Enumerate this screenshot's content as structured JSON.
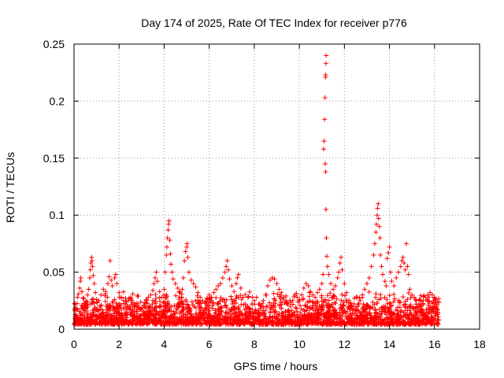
{
  "chart_data": {
    "type": "scatter",
    "title": "Day 174 of 2025, Rate Of TEC Index for receiver p776",
    "xlabel": "GPS time / hours",
    "ylabel": "ROTI / TECUs",
    "xlim": [
      0,
      18
    ],
    "ylim": [
      0,
      0.25
    ],
    "xticks": [
      0,
      2,
      4,
      6,
      8,
      10,
      12,
      14,
      16,
      18
    ],
    "xtick_labels": [
      "0",
      "2",
      "4",
      "6",
      "8",
      "10",
      "12",
      "14",
      "16",
      "18"
    ],
    "yticks": [
      0,
      0.05,
      0.1,
      0.15,
      0.2,
      0.25
    ],
    "ytick_labels": [
      "0",
      "0.05",
      "0.1",
      "0.15",
      "0.2",
      "0.25"
    ],
    "grid": true,
    "marker": "+",
    "color": "#ff0000",
    "series": [
      {
        "name": "ROTI",
        "points": [
          [
            0.05,
            0.022
          ],
          [
            0.1,
            0.018
          ],
          [
            0.15,
            0.028
          ],
          [
            0.2,
            0.031
          ],
          [
            0.25,
            0.036
          ],
          [
            0.3,
            0.045
          ],
          [
            0.28,
            0.042
          ],
          [
            0.35,
            0.033
          ],
          [
            0.4,
            0.027
          ],
          [
            0.45,
            0.02
          ],
          [
            0.5,
            0.018
          ],
          [
            0.55,
            0.024
          ],
          [
            0.6,
            0.03
          ],
          [
            0.65,
            0.035
          ],
          [
            0.7,
            0.045
          ],
          [
            0.72,
            0.052
          ],
          [
            0.75,
            0.058
          ],
          [
            0.78,
            0.063
          ],
          [
            0.8,
            0.06
          ],
          [
            0.82,
            0.055
          ],
          [
            0.85,
            0.047
          ],
          [
            0.9,
            0.04
          ],
          [
            0.95,
            0.032
          ],
          [
            1.0,
            0.026
          ],
          [
            1.1,
            0.025
          ],
          [
            1.2,
            0.03
          ],
          [
            1.3,
            0.035
          ],
          [
            1.4,
            0.033
          ],
          [
            1.5,
            0.04
          ],
          [
            1.55,
            0.046
          ],
          [
            1.6,
            0.06
          ],
          [
            1.65,
            0.043
          ],
          [
            1.7,
            0.038
          ],
          [
            1.8,
            0.045
          ],
          [
            1.85,
            0.048
          ],
          [
            1.9,
            0.04
          ],
          [
            2.0,
            0.032
          ],
          [
            2.1,
            0.028
          ],
          [
            2.2,
            0.025
          ],
          [
            2.3,
            0.022
          ],
          [
            2.4,
            0.02
          ],
          [
            2.5,
            0.018
          ],
          [
            2.6,
            0.016
          ],
          [
            2.7,
            0.02
          ],
          [
            2.8,
            0.022
          ],
          [
            2.9,
            0.019
          ],
          [
            3.0,
            0.017
          ],
          [
            3.1,
            0.021
          ],
          [
            3.2,
            0.026
          ],
          [
            3.3,
            0.028
          ],
          [
            3.4,
            0.03
          ],
          [
            3.5,
            0.034
          ],
          [
            3.55,
            0.04
          ],
          [
            3.6,
            0.045
          ],
          [
            3.65,
            0.05
          ],
          [
            3.7,
            0.042
          ],
          [
            3.8,
            0.033
          ],
          [
            3.9,
            0.028
          ],
          [
            4.0,
            0.035
          ],
          [
            4.05,
            0.05
          ],
          [
            4.1,
            0.065
          ],
          [
            4.12,
            0.072
          ],
          [
            4.15,
            0.08
          ],
          [
            4.18,
            0.087
          ],
          [
            4.2,
            0.092
          ],
          [
            4.22,
            0.095
          ],
          [
            4.25,
            0.078
          ],
          [
            4.28,
            0.066
          ],
          [
            4.3,
            0.057
          ],
          [
            4.35,
            0.05
          ],
          [
            4.4,
            0.044
          ],
          [
            4.5,
            0.04
          ],
          [
            4.6,
            0.036
          ],
          [
            4.7,
            0.032
          ],
          [
            4.8,
            0.035
          ],
          [
            4.85,
            0.045
          ],
          [
            4.9,
            0.06
          ],
          [
            4.95,
            0.068
          ],
          [
            5.0,
            0.072
          ],
          [
            5.02,
            0.075
          ],
          [
            5.05,
            0.063
          ],
          [
            5.1,
            0.05
          ],
          [
            5.2,
            0.043
          ],
          [
            5.3,
            0.04
          ],
          [
            5.4,
            0.037
          ],
          [
            5.5,
            0.032
          ],
          [
            5.6,
            0.028
          ],
          [
            5.7,
            0.025
          ],
          [
            5.8,
            0.023
          ],
          [
            5.9,
            0.027
          ],
          [
            6.0,
            0.03
          ],
          [
            6.1,
            0.028
          ],
          [
            6.2,
            0.032
          ],
          [
            6.3,
            0.035
          ],
          [
            6.4,
            0.038
          ],
          [
            6.5,
            0.04
          ],
          [
            6.6,
            0.045
          ],
          [
            6.7,
            0.05
          ],
          [
            6.75,
            0.055
          ],
          [
            6.8,
            0.06
          ],
          [
            6.85,
            0.052
          ],
          [
            6.9,
            0.044
          ],
          [
            7.0,
            0.038
          ],
          [
            7.1,
            0.033
          ],
          [
            7.2,
            0.04
          ],
          [
            7.25,
            0.045
          ],
          [
            7.3,
            0.048
          ],
          [
            7.4,
            0.036
          ],
          [
            7.5,
            0.028
          ],
          [
            7.6,
            0.022
          ],
          [
            7.7,
            0.02
          ],
          [
            7.8,
            0.018
          ],
          [
            7.9,
            0.022
          ],
          [
            8.0,
            0.025
          ],
          [
            8.1,
            0.028
          ],
          [
            8.2,
            0.022
          ],
          [
            8.3,
            0.02
          ],
          [
            8.4,
            0.025
          ],
          [
            8.5,
            0.03
          ],
          [
            8.6,
            0.038
          ],
          [
            8.7,
            0.043
          ],
          [
            8.8,
            0.045
          ],
          [
            8.9,
            0.044
          ],
          [
            9.0,
            0.04
          ],
          [
            9.1,
            0.035
          ],
          [
            9.2,
            0.032
          ],
          [
            9.3,
            0.028
          ],
          [
            9.4,
            0.025
          ],
          [
            9.5,
            0.022
          ],
          [
            9.6,
            0.02
          ],
          [
            9.7,
            0.025
          ],
          [
            9.8,
            0.03
          ],
          [
            9.9,
            0.028
          ],
          [
            10.0,
            0.025
          ],
          [
            10.1,
            0.03
          ],
          [
            10.2,
            0.036
          ],
          [
            10.3,
            0.04
          ],
          [
            10.4,
            0.038
          ],
          [
            10.5,
            0.033
          ],
          [
            10.6,
            0.03
          ],
          [
            10.7,
            0.028
          ],
          [
            10.8,
            0.032
          ],
          [
            10.9,
            0.035
          ],
          [
            11.0,
            0.04
          ],
          [
            11.05,
            0.048
          ],
          [
            11.08,
            0.158
          ],
          [
            11.1,
            0.165
          ],
          [
            11.12,
            0.184
          ],
          [
            11.14,
            0.203
          ],
          [
            11.16,
            0.221
          ],
          [
            11.17,
            0.223
          ],
          [
            11.18,
            0.233
          ],
          [
            11.19,
            0.24
          ],
          [
            11.15,
            0.145
          ],
          [
            11.17,
            0.138
          ],
          [
            11.18,
            0.105
          ],
          [
            11.2,
            0.08
          ],
          [
            11.22,
            0.064
          ],
          [
            11.25,
            0.055
          ],
          [
            11.3,
            0.048
          ],
          [
            11.4,
            0.04
          ],
          [
            11.5,
            0.035
          ],
          [
            11.6,
            0.038
          ],
          [
            11.7,
            0.045
          ],
          [
            11.75,
            0.05
          ],
          [
            11.8,
            0.058
          ],
          [
            11.85,
            0.063
          ],
          [
            11.9,
            0.052
          ],
          [
            12.0,
            0.04
          ],
          [
            12.1,
            0.032
          ],
          [
            12.2,
            0.025
          ],
          [
            12.3,
            0.02
          ],
          [
            12.4,
            0.018
          ],
          [
            12.5,
            0.016
          ],
          [
            12.6,
            0.02
          ],
          [
            12.7,
            0.025
          ],
          [
            12.8,
            0.03
          ],
          [
            12.9,
            0.035
          ],
          [
            13.0,
            0.04
          ],
          [
            13.1,
            0.045
          ],
          [
            13.2,
            0.055
          ],
          [
            13.3,
            0.065
          ],
          [
            13.35,
            0.075
          ],
          [
            13.4,
            0.085
          ],
          [
            13.42,
            0.092
          ],
          [
            13.45,
            0.1
          ],
          [
            13.47,
            0.106
          ],
          [
            13.5,
            0.11
          ],
          [
            13.52,
            0.097
          ],
          [
            13.55,
            0.09
          ],
          [
            13.58,
            0.08
          ],
          [
            13.6,
            0.065
          ],
          [
            13.65,
            0.055
          ],
          [
            13.7,
            0.048
          ],
          [
            13.8,
            0.042
          ],
          [
            13.85,
            0.038
          ],
          [
            13.9,
            0.062
          ],
          [
            13.95,
            0.067
          ],
          [
            14.0,
            0.072
          ],
          [
            14.05,
            0.05
          ],
          [
            14.1,
            0.042
          ],
          [
            14.2,
            0.038
          ],
          [
            14.3,
            0.045
          ],
          [
            14.4,
            0.05
          ],
          [
            14.5,
            0.055
          ],
          [
            14.55,
            0.06
          ],
          [
            14.6,
            0.063
          ],
          [
            14.65,
            0.058
          ],
          [
            14.7,
            0.052
          ],
          [
            14.75,
            0.075
          ],
          [
            14.8,
            0.055
          ],
          [
            14.85,
            0.048
          ],
          [
            14.9,
            0.035
          ],
          [
            15.0,
            0.03
          ],
          [
            15.1,
            0.028
          ],
          [
            15.2,
            0.025
          ],
          [
            15.3,
            0.022
          ],
          [
            15.4,
            0.02
          ],
          [
            15.5,
            0.025
          ],
          [
            15.6,
            0.028
          ],
          [
            15.7,
            0.03
          ],
          [
            15.8,
            0.032
          ],
          [
            15.9,
            0.03
          ],
          [
            16.0,
            0.028
          ],
          [
            16.05,
            0.025
          ],
          [
            16.1,
            0.02
          ],
          [
            16.15,
            0.015
          ]
        ]
      }
    ]
  }
}
